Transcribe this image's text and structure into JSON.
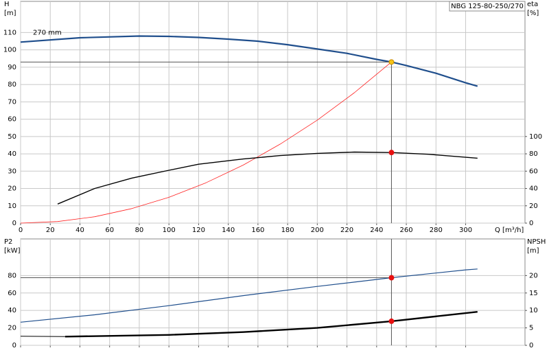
{
  "chart_data": [
    {
      "type": "line",
      "title": "NBG 125-80-250/270",
      "ylabel": [
        "H",
        "[m]"
      ],
      "y2label": [
        "eta",
        "[%]"
      ],
      "xlabel": "Q [m³/h]",
      "xlim": [
        0,
        340
      ],
      "xticks": [
        0,
        20,
        40,
        60,
        80,
        100,
        120,
        140,
        160,
        180,
        200,
        220,
        240,
        260,
        280,
        300
      ],
      "ylim": [
        0,
        128
      ],
      "yticks": [
        0,
        10,
        20,
        30,
        40,
        50,
        60,
        70,
        80,
        90,
        100,
        110
      ],
      "y2lim": [
        0,
        256
      ],
      "y2ticks": [
        0,
        20,
        40,
        60,
        80,
        100
      ],
      "grid": true,
      "show_xtick_labels": true,
      "series": [
        {
          "name": "270 mm",
          "color": "#1f4e8c",
          "width": 2.2,
          "x": [
            0,
            40,
            80,
            100,
            120,
            140,
            160,
            180,
            200,
            220,
            240,
            250,
            260,
            280,
            300,
            308
          ],
          "values": [
            104.5,
            107,
            108,
            107.8,
            107.2,
            106.2,
            105,
            103,
            100.5,
            98,
            94.5,
            93,
            91,
            86.5,
            81,
            79
          ]
        },
        {
          "color": "#ff2020",
          "width": 0.8,
          "x": [
            0,
            25,
            50,
            75,
            100,
            125,
            150,
            175,
            200,
            225,
            250
          ],
          "values": [
            0,
            0.9,
            3.7,
            8.4,
            14.9,
            23.3,
            33.5,
            45.6,
            59.5,
            75.3,
            93
          ]
        },
        {
          "color": "#000000",
          "width": 1.4,
          "axis": "y2",
          "x": [
            25,
            50,
            75,
            100,
            120,
            150,
            175,
            200,
            225,
            250,
            275,
            308
          ],
          "values": [
            22,
            40,
            52,
            61,
            68,
            74,
            78,
            80.5,
            82,
            81.5,
            79.5,
            75
          ]
        },
        {
          "color": "#f5c518",
          "marker": true,
          "crosshair": true,
          "x": [
            250
          ],
          "values": [
            93
          ]
        },
        {
          "color": "#e81010",
          "marker": true,
          "axis": "y2",
          "x": [
            250
          ],
          "values": [
            81.5
          ]
        }
      ]
    },
    {
      "type": "line",
      "ylabel": [
        "P2",
        "[kW]"
      ],
      "y2label": [
        "NPSH",
        "[m]"
      ],
      "xlim": [
        0,
        340
      ],
      "xticks": [
        0,
        20,
        40,
        60,
        80,
        100,
        120,
        140,
        160,
        180,
        200,
        220,
        240,
        260,
        280,
        300
      ],
      "ylim": [
        0,
        122
      ],
      "yticks": [
        0,
        20,
        40,
        60,
        80
      ],
      "y2lim": [
        0,
        30.5
      ],
      "y2ticks": [
        0,
        5,
        10,
        15,
        20
      ],
      "grid": true,
      "show_xtick_labels": false,
      "series": [
        {
          "color": "#1f4e8c",
          "width": 1.2,
          "x": [
            0,
            50,
            100,
            150,
            200,
            250,
            300,
            308
          ],
          "values": [
            26.5,
            35,
            45.5,
            57,
            67.5,
            77.5,
            86.5,
            87.5
          ]
        },
        {
          "color": "#000000",
          "width": 1,
          "axis": "y2",
          "x": [
            0,
            30
          ],
          "values": [
            2.6,
            2.5
          ]
        },
        {
          "color": "#000000",
          "width": 2.4,
          "axis": "y2",
          "x": [
            30,
            100,
            150,
            200,
            250,
            308
          ],
          "values": [
            2.5,
            3.0,
            3.8,
            5.0,
            6.9,
            9.6
          ]
        },
        {
          "color": "#e81010",
          "marker": true,
          "crosshair": true,
          "x": [
            250
          ],
          "values": [
            77.5
          ]
        },
        {
          "color": "#e81010",
          "marker": true,
          "axis": "y2",
          "x": [
            250
          ],
          "values": [
            6.9
          ]
        }
      ]
    }
  ]
}
